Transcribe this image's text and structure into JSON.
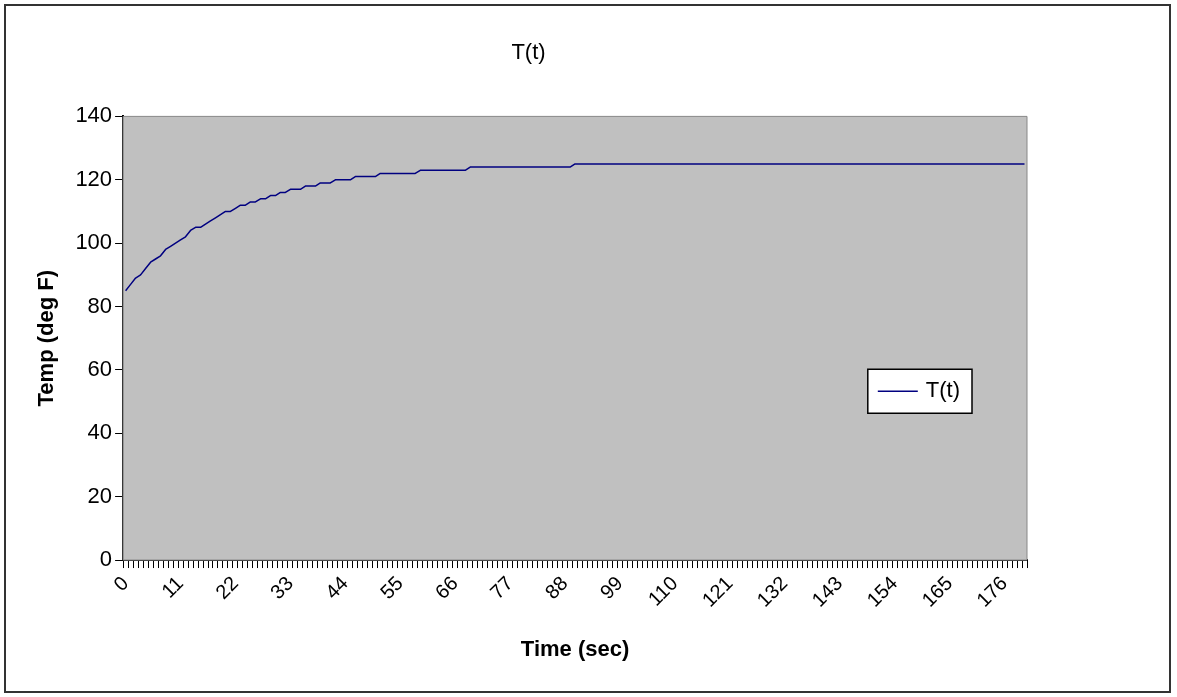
{
  "chart_data": {
    "type": "line",
    "title": "T(t)",
    "xlabel": "Time (sec)",
    "ylabel": "Temp (deg F)",
    "categories": [
      "0",
      null,
      null,
      null,
      null,
      null,
      null,
      null,
      null,
      null,
      null,
      "11",
      null,
      null,
      null,
      null,
      null,
      null,
      null,
      null,
      null,
      null,
      "22",
      null,
      null,
      null,
      null,
      null,
      null,
      null,
      null,
      null,
      null,
      "33",
      null,
      null,
      null,
      null,
      null,
      null,
      null,
      null,
      null,
      null,
      "44",
      null,
      null,
      null,
      null,
      null,
      null,
      null,
      null,
      null,
      null,
      "55",
      null,
      null,
      null,
      null,
      null,
      null,
      null,
      null,
      null,
      null,
      "66",
      null,
      null,
      null,
      null,
      null,
      null,
      null,
      null,
      null,
      null,
      "77",
      null,
      null,
      null,
      null,
      null,
      null,
      null,
      null,
      null,
      null,
      "88",
      null,
      null,
      null,
      null,
      null,
      null,
      null,
      null,
      null,
      null,
      "99",
      null,
      null,
      null,
      null,
      null,
      null,
      null,
      null,
      null,
      null,
      "110",
      null,
      null,
      null,
      null,
      null,
      null,
      null,
      null,
      null,
      null,
      "121",
      null,
      null,
      null,
      null,
      null,
      null,
      null,
      null,
      null,
      null,
      "132",
      null,
      null,
      null,
      null,
      null,
      null,
      null,
      null,
      null,
      null,
      "143",
      null,
      null,
      null,
      null,
      null,
      null,
      null,
      null,
      null,
      null,
      "154",
      null,
      null,
      null,
      null,
      null,
      null,
      null,
      null,
      null,
      null,
      "165",
      null,
      null,
      null,
      null,
      null,
      null,
      null,
      null,
      null,
      null,
      "176",
      null,
      null,
      null,
      null
    ],
    "series": [
      {
        "name": "T(t)",
        "color": "#000080",
        "values": [
          85,
          87,
          89,
          90,
          92,
          94,
          95,
          96,
          98,
          99,
          100,
          101,
          102,
          104,
          105,
          105,
          106,
          107,
          108,
          109,
          110,
          110,
          111,
          112,
          112,
          113,
          113,
          114,
          114,
          115,
          115,
          116,
          116,
          117,
          117,
          117,
          118,
          118,
          118,
          119,
          119,
          119,
          120,
          120,
          120,
          120,
          121,
          121,
          121,
          121,
          121,
          122,
          122,
          122,
          122,
          122,
          122,
          122,
          122,
          123,
          123,
          123,
          123,
          123,
          123,
          123,
          123,
          123,
          123,
          124,
          124,
          124,
          124,
          124,
          124,
          124,
          124,
          124,
          124,
          124,
          124,
          124,
          124,
          124,
          124,
          124,
          124,
          124,
          124,
          124,
          125,
          125,
          125,
          125,
          125,
          125,
          125,
          125,
          125,
          125,
          125,
          125,
          125,
          125,
          125,
          125,
          125,
          125,
          125,
          125,
          125,
          125,
          125,
          125,
          125,
          125,
          125,
          125,
          125,
          125,
          125,
          125,
          125,
          125,
          125,
          125,
          125,
          125,
          125,
          125,
          125,
          125,
          125,
          125,
          125,
          125,
          125,
          125,
          125,
          125,
          125,
          125,
          125,
          125,
          125,
          125,
          125,
          125,
          125,
          125,
          125,
          125,
          125,
          125,
          125,
          125,
          125,
          125,
          125,
          125,
          125,
          125,
          125,
          125,
          125,
          125,
          125,
          125,
          125,
          125,
          125,
          125,
          125,
          125,
          125,
          125,
          125,
          125,
          125,
          125,
          125
        ]
      }
    ],
    "ylim": [
      0,
      140
    ],
    "yticks": [
      0,
      20,
      40,
      60,
      80,
      100,
      120,
      140
    ],
    "grid": false,
    "legend": "right",
    "marker": "none",
    "line_style": "solid"
  }
}
